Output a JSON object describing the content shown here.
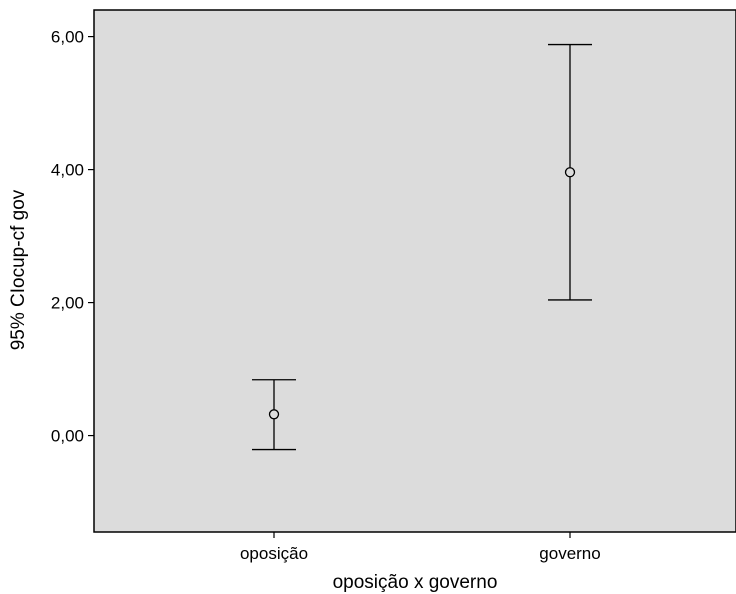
{
  "chart_data": {
    "type": "errorbar",
    "title": "",
    "xlabel": "oposição x governo",
    "ylabel": "95% CIocup-cf gov",
    "categories": [
      "oposição",
      "governo"
    ],
    "series": [
      {
        "mean": [
          0.32,
          3.96
        ],
        "lower": [
          -0.21,
          2.04
        ],
        "upper": [
          0.84,
          5.88
        ]
      }
    ],
    "ylim": [
      -1.45,
      6.4
    ],
    "yticks": [
      0,
      2,
      4,
      6
    ],
    "ytick_labels": [
      "0,00",
      "2,00",
      "4,00",
      "6,00"
    ],
    "grid": false,
    "legend": "none",
    "colors": {
      "plot_background": "#dcdcdc",
      "line": "#000000",
      "page_background": "#ffffff"
    }
  }
}
